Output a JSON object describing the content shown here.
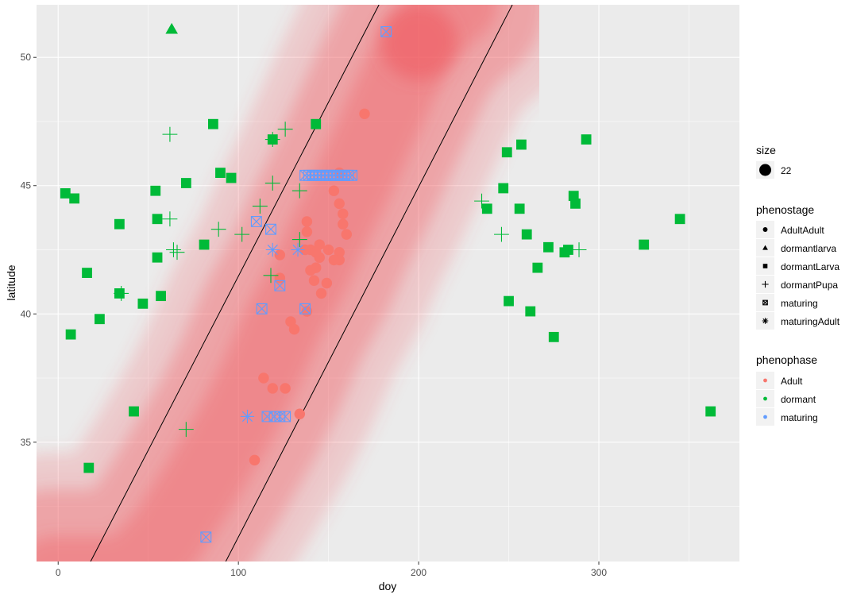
{
  "chart_data": {
    "type": "scatter",
    "xlabel": "doy",
    "ylabel": "latitude",
    "xlim": [
      -12,
      378
    ],
    "ylim": [
      30.35,
      52.05
    ],
    "x_ticks": [
      0,
      100,
      200,
      300
    ],
    "y_ticks": [
      35,
      40,
      45,
      50
    ],
    "grid": true,
    "legend_position": "right",
    "colors": {
      "Adult": "#f8766d",
      "dormant": "#00ba38",
      "maturing": "#619cff",
      "ribbon": "#f0525a"
    },
    "ribbon_center": [
      [
        -2,
        29.8
      ],
      [
        40,
        29.8
      ],
      [
        60,
        31.3
      ],
      [
        80,
        33.5
      ],
      [
        100,
        35.9
      ],
      [
        112,
        37.6
      ],
      [
        125,
        39.7
      ],
      [
        140,
        41.6
      ],
      [
        150,
        43.2
      ],
      [
        162,
        44.9
      ],
      [
        175,
        46.9
      ],
      [
        190,
        49.2
      ],
      [
        200,
        50.6
      ],
      [
        215,
        51.7
      ],
      [
        222,
        52.1
      ]
    ],
    "ribbon_halfwidth": 20,
    "lines": [
      {
        "x": [
          18,
          178
        ],
        "y": [
          30.35,
          52.05
        ]
      },
      {
        "x": [
          93,
          252
        ],
        "y": [
          30.35,
          52.05
        ]
      }
    ],
    "series": [
      {
        "phenostage": "AdultAdult",
        "phenophase": "Adult",
        "shape": "circle",
        "points": [
          [
            170,
            47.8
          ],
          [
            156,
            45.5
          ],
          [
            153,
            44.8
          ],
          [
            156,
            44.3
          ],
          [
            158,
            43.9
          ],
          [
            158,
            43.5
          ],
          [
            160,
            43.1
          ],
          [
            138,
            43.6
          ],
          [
            138,
            43.2
          ],
          [
            145,
            42.7
          ],
          [
            140,
            42.5
          ],
          [
            145,
            42.2
          ],
          [
            156,
            42.4
          ],
          [
            156,
            42.1
          ],
          [
            150,
            42.5
          ],
          [
            153,
            42.1
          ],
          [
            137,
            42.5
          ],
          [
            143,
            42.4
          ],
          [
            123,
            42.3
          ],
          [
            143,
            41.8
          ],
          [
            140,
            41.7
          ],
          [
            142,
            41.3
          ],
          [
            149,
            41.2
          ],
          [
            146,
            40.8
          ],
          [
            123,
            41.4
          ],
          [
            138,
            40.1
          ],
          [
            129,
            39.7
          ],
          [
            131,
            39.4
          ],
          [
            114,
            37.5
          ],
          [
            119,
            37.1
          ],
          [
            126,
            37.1
          ],
          [
            134,
            36.1
          ],
          [
            109,
            34.3
          ]
        ]
      },
      {
        "phenostage": "dormantlarva",
        "phenophase": "dormant",
        "shape": "triangle",
        "points": [
          [
            63,
            51.1
          ]
        ]
      },
      {
        "phenostage": "dormantLarva",
        "phenophase": "dormant",
        "shape": "square",
        "points": [
          [
            4,
            44.7
          ],
          [
            9,
            44.5
          ],
          [
            16,
            41.6
          ],
          [
            7,
            39.2
          ],
          [
            23,
            39.8
          ],
          [
            34,
            43.5
          ],
          [
            34,
            40.8
          ],
          [
            42,
            36.2
          ],
          [
            47,
            40.4
          ],
          [
            17,
            34.0
          ],
          [
            54,
            44.8
          ],
          [
            55,
            43.7
          ],
          [
            55,
            42.2
          ],
          [
            57,
            40.7
          ],
          [
            71,
            45.1
          ],
          [
            81,
            42.7
          ],
          [
            86,
            47.4
          ],
          [
            90,
            45.5
          ],
          [
            96,
            45.3
          ],
          [
            119,
            46.8
          ],
          [
            143,
            47.4
          ],
          [
            238,
            44.1
          ],
          [
            247,
            44.9
          ],
          [
            249,
            46.3
          ],
          [
            257,
            46.6
          ],
          [
            256,
            44.1
          ],
          [
            260,
            43.1
          ],
          [
            266,
            41.8
          ],
          [
            272,
            42.6
          ],
          [
            281,
            42.4
          ],
          [
            283,
            42.5
          ],
          [
            286,
            44.6
          ],
          [
            287,
            44.3
          ],
          [
            293,
            46.8
          ],
          [
            250,
            40.5
          ],
          [
            262,
            40.1
          ],
          [
            275,
            39.1
          ],
          [
            325,
            42.7
          ],
          [
            345,
            43.7
          ],
          [
            362,
            36.2
          ]
        ]
      },
      {
        "phenostage": "dormantPupa",
        "phenophase": "dormant",
        "shape": "plus",
        "points": [
          [
            62,
            47.0
          ],
          [
            126,
            47.2
          ],
          [
            119,
            46.8
          ],
          [
            62,
            43.7
          ],
          [
            64,
            42.5
          ],
          [
            66,
            42.4
          ],
          [
            89,
            43.3
          ],
          [
            102,
            43.1
          ],
          [
            112,
            44.2
          ],
          [
            119,
            45.1
          ],
          [
            134,
            44.8
          ],
          [
            134,
            42.9
          ],
          [
            118,
            41.5
          ],
          [
            35,
            40.8
          ],
          [
            71,
            35.5
          ],
          [
            235,
            44.4
          ],
          [
            246,
            43.1
          ],
          [
            289,
            42.5
          ]
        ]
      },
      {
        "phenostage": "maturing",
        "phenophase": "maturing",
        "shape": "box-x",
        "points": [
          [
            182,
            51.0
          ],
          [
            137,
            45.4
          ],
          [
            139,
            45.4
          ],
          [
            141,
            45.4
          ],
          [
            143,
            45.4
          ],
          [
            145,
            45.4
          ],
          [
            147,
            45.4
          ],
          [
            149,
            45.4
          ],
          [
            151,
            45.4
          ],
          [
            153,
            45.4
          ],
          [
            155,
            45.4
          ],
          [
            157,
            45.4
          ],
          [
            159,
            45.4
          ],
          [
            161,
            45.4
          ],
          [
            163,
            45.4
          ],
          [
            110,
            43.6
          ],
          [
            118,
            43.3
          ],
          [
            123,
            41.1
          ],
          [
            113,
            40.2
          ],
          [
            137,
            40.2
          ],
          [
            116,
            36.0
          ],
          [
            120,
            36.0
          ],
          [
            123,
            36.0
          ],
          [
            126,
            36.0
          ],
          [
            82,
            31.3
          ]
        ]
      },
      {
        "phenostage": "maturingAdult",
        "phenophase": "maturing",
        "shape": "asterisk",
        "points": [
          [
            119,
            42.5
          ],
          [
            133,
            42.5
          ],
          [
            105,
            36.0
          ]
        ]
      }
    ],
    "legend": {
      "size": {
        "title": "size",
        "label": "22"
      },
      "phenostage": {
        "title": "phenostage",
        "items": [
          "AdultAdult",
          "dormantlarva",
          "dormantLarva",
          "dormantPupa",
          "maturing",
          "maturingAdult"
        ]
      },
      "phenophase": {
        "title": "phenophase",
        "items": [
          "Adult",
          "dormant",
          "maturing"
        ]
      }
    }
  }
}
